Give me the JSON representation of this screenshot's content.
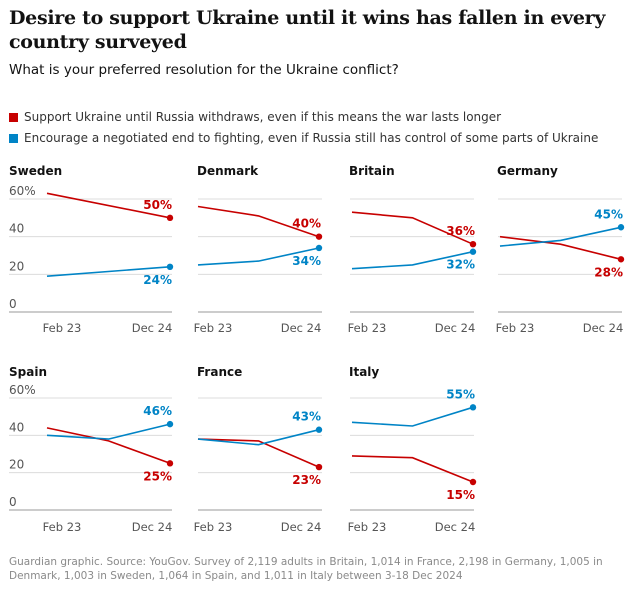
{
  "title": "Desire to support Ukraine until it wins has fallen in every country surveyed",
  "subtitle": "What is your preferred resolution for the Ukraine conflict?",
  "legend": [
    {
      "label": "Support Ukraine until Russia withdraws, even if this means the war lasts longer",
      "color": "#c70000"
    },
    {
      "label": "Encourage a negotiated end to fighting, even if Russia still has control of some parts of Ukraine",
      "color": "#0084c6"
    }
  ],
  "footer": "Guardian graphic. Source: YouGov. Survey of 2,119 adults in Britain, 1,014 in France, 2,198 in Germany, 1,005 in Denmark, 1,003 in Sweden, 1,064 in Spain, and 1,011 in Italy between 3-18 Dec 2024",
  "chart_data": {
    "type": "line",
    "x_ticks": [
      "Feb 23",
      "Dec 24"
    ],
    "y_ticks": [
      "60%",
      "40",
      "20",
      "0"
    ],
    "ylim": [
      0,
      60
    ],
    "panels": [
      {
        "country": "Sweden",
        "series": [
          {
            "name": "Support Ukraine until Russia withdraws",
            "color": "#c70000",
            "values": [
              63,
              50
            ],
            "end_label": "50%"
          },
          {
            "name": "Encourage a negotiated end",
            "color": "#0084c6",
            "values": [
              19,
              24
            ],
            "end_label": "24%"
          }
        ]
      },
      {
        "country": "Denmark",
        "series": [
          {
            "name": "Support Ukraine until Russia withdraws",
            "color": "#c70000",
            "values": [
              56,
              51,
              40
            ],
            "end_label": "40%"
          },
          {
            "name": "Encourage a negotiated end",
            "color": "#0084c6",
            "values": [
              25,
              27,
              34
            ],
            "end_label": "34%"
          }
        ]
      },
      {
        "country": "Britain",
        "series": [
          {
            "name": "Support Ukraine until Russia withdraws",
            "color": "#c70000",
            "values": [
              53,
              50,
              36
            ],
            "end_label": "36%"
          },
          {
            "name": "Encourage a negotiated end",
            "color": "#0084c6",
            "values": [
              23,
              25,
              32
            ],
            "end_label": "32%"
          }
        ]
      },
      {
        "country": "Germany",
        "series": [
          {
            "name": "Support Ukraine until Russia withdraws",
            "color": "#c70000",
            "values": [
              40,
              36,
              28
            ],
            "end_label": "28%"
          },
          {
            "name": "Encourage a negotiated end",
            "color": "#0084c6",
            "values": [
              35,
              38,
              45
            ],
            "end_label": "45%"
          }
        ]
      },
      {
        "country": "Spain",
        "series": [
          {
            "name": "Support Ukraine until Russia withdraws",
            "color": "#c70000",
            "values": [
              44,
              37,
              25
            ],
            "end_label": "25%"
          },
          {
            "name": "Encourage a negotiated end",
            "color": "#0084c6",
            "values": [
              40,
              38,
              46
            ],
            "end_label": "46%"
          }
        ]
      },
      {
        "country": "France",
        "series": [
          {
            "name": "Support Ukraine until Russia withdraws",
            "color": "#c70000",
            "values": [
              38,
              37,
              23
            ],
            "end_label": "23%"
          },
          {
            "name": "Encourage a negotiated end",
            "color": "#0084c6",
            "values": [
              38,
              35,
              43
            ],
            "end_label": "43%"
          }
        ]
      },
      {
        "country": "Italy",
        "series": [
          {
            "name": "Support Ukraine until Russia withdraws",
            "color": "#c70000",
            "values": [
              29,
              28,
              15
            ],
            "end_label": "15%"
          },
          {
            "name": "Encourage a negotiated end",
            "color": "#0084c6",
            "values": [
              47,
              45,
              55
            ],
            "end_label": "55%"
          }
        ]
      }
    ]
  }
}
